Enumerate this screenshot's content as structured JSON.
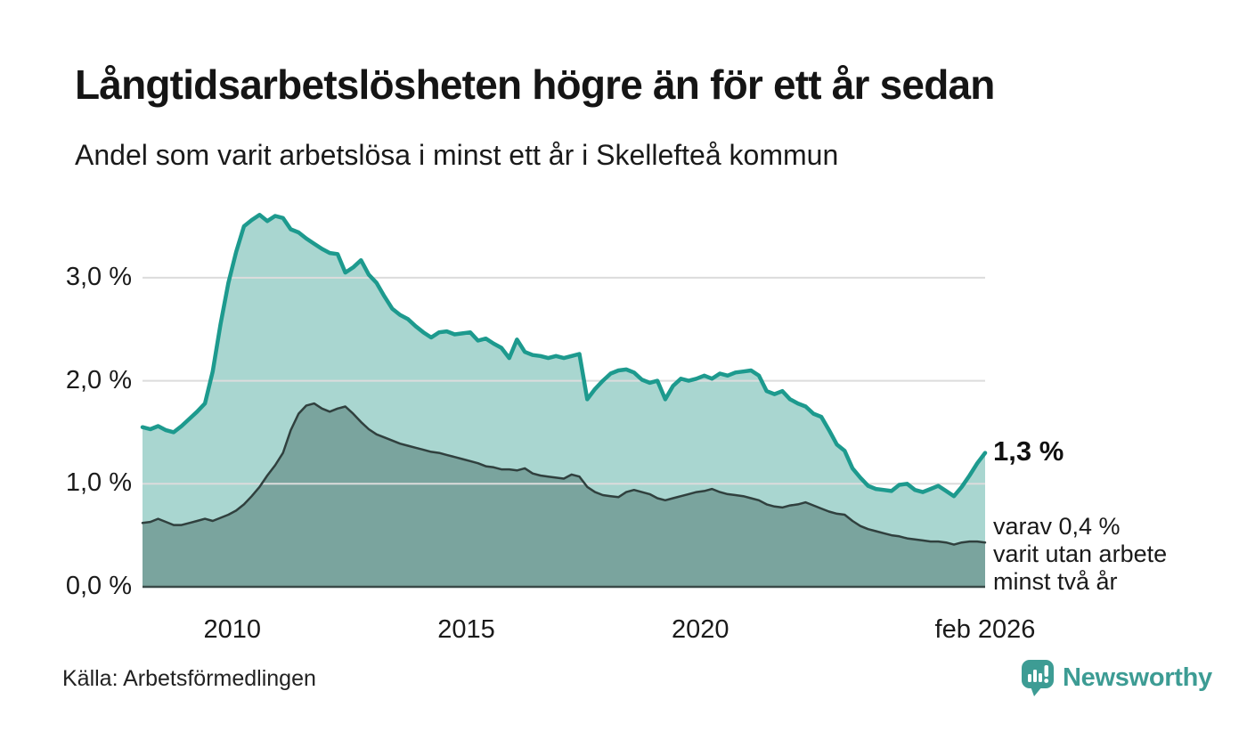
{
  "title": "Långtidsarbetslösheten högre än för ett år sedan",
  "subtitle": "Andel som varit arbetslösa i minst ett år i Skellefteå kommun",
  "annotation": {
    "end_value_label": "1,3 %",
    "secondary_lines": [
      "varav 0,4 %",
      "varit utan arbete",
      "minst två år"
    ]
  },
  "footer": {
    "source": "Källa: Arbetsförmedlingen",
    "brand": "Newsworthy"
  },
  "colors": {
    "teal_line": "#1d9a8e",
    "light_fill": "#a9d6d0",
    "dark_fill": "#7aa49e",
    "dark_line": "#30403e",
    "gridline": "#dcdcdc",
    "axis": "#3a4a48",
    "brand_teal": "#3d9c94",
    "text": "#1a1a1a"
  },
  "chart_data": {
    "type": "area",
    "title": "Långtidsarbetslösheten högre än för ett år sedan",
    "subtitle": "Andel som varit arbetslösa i minst ett år i Skellefteå kommun",
    "unit": "%",
    "x_start_year": 2008.083,
    "x_end_year": 2026.083,
    "x_step_months": 2,
    "ylim": [
      0,
      3.85
    ],
    "grid": true,
    "legend_position": "none",
    "yticks": [
      {
        "label": "0,0 %",
        "value": 0
      },
      {
        "label": "1,0 %",
        "value": 1
      },
      {
        "label": "2,0 %",
        "value": 2
      },
      {
        "label": "3,0 %",
        "value": 3
      }
    ],
    "xticks": [
      {
        "label": "2010",
        "year": 2010
      },
      {
        "label": "2015",
        "year": 2015
      },
      {
        "label": "2020",
        "year": 2020
      },
      {
        "label": "feb 2026",
        "year": 2026.083
      }
    ],
    "series": [
      {
        "name": "Arbetslösa minst ett år",
        "last_value": 1.3,
        "values": [
          1.55,
          1.53,
          1.56,
          1.52,
          1.5,
          1.56,
          1.63,
          1.7,
          1.78,
          2.09,
          2.55,
          2.95,
          3.25,
          3.5,
          3.56,
          3.61,
          3.55,
          3.6,
          3.58,
          3.47,
          3.44,
          3.38,
          3.33,
          3.28,
          3.24,
          3.23,
          3.05,
          3.1,
          3.17,
          3.03,
          2.95,
          2.82,
          2.7,
          2.64,
          2.6,
          2.53,
          2.47,
          2.42,
          2.47,
          2.48,
          2.45,
          2.46,
          2.47,
          2.39,
          2.41,
          2.36,
          2.32,
          2.22,
          2.4,
          2.28,
          2.25,
          2.24,
          2.22,
          2.24,
          2.22,
          2.24,
          2.26,
          1.82,
          1.92,
          2.0,
          2.07,
          2.1,
          2.11,
          2.08,
          2.01,
          1.98,
          2.0,
          1.82,
          1.95,
          2.02,
          2.0,
          2.02,
          2.05,
          2.02,
          2.07,
          2.05,
          2.08,
          2.09,
          2.1,
          2.05,
          1.9,
          1.87,
          1.9,
          1.82,
          1.78,
          1.75,
          1.68,
          1.65,
          1.52,
          1.38,
          1.32,
          1.15,
          1.06,
          0.98,
          0.95,
          0.94,
          0.93,
          0.99,
          1.0,
          0.94,
          0.92,
          0.95,
          0.98,
          0.93,
          0.88,
          0.97,
          1.08,
          1.2,
          1.3
        ]
      },
      {
        "name": "Varav utan arbete minst två år",
        "last_value": 0.4,
        "values": [
          0.62,
          0.63,
          0.66,
          0.63,
          0.6,
          0.6,
          0.62,
          0.64,
          0.66,
          0.64,
          0.67,
          0.7,
          0.74,
          0.8,
          0.88,
          0.97,
          1.08,
          1.18,
          1.3,
          1.52,
          1.68,
          1.76,
          1.78,
          1.73,
          1.7,
          1.73,
          1.75,
          1.68,
          1.6,
          1.53,
          1.48,
          1.45,
          1.42,
          1.39,
          1.37,
          1.35,
          1.33,
          1.31,
          1.3,
          1.28,
          1.26,
          1.24,
          1.22,
          1.2,
          1.17,
          1.16,
          1.14,
          1.14,
          1.13,
          1.15,
          1.1,
          1.08,
          1.07,
          1.06,
          1.05,
          1.09,
          1.07,
          0.97,
          0.92,
          0.89,
          0.88,
          0.87,
          0.92,
          0.94,
          0.92,
          0.9,
          0.86,
          0.84,
          0.86,
          0.88,
          0.9,
          0.92,
          0.93,
          0.95,
          0.92,
          0.9,
          0.89,
          0.88,
          0.86,
          0.84,
          0.8,
          0.78,
          0.77,
          0.79,
          0.8,
          0.82,
          0.79,
          0.76,
          0.73,
          0.71,
          0.7,
          0.64,
          0.59,
          0.56,
          0.54,
          0.52,
          0.5,
          0.49,
          0.47,
          0.46,
          0.45,
          0.44,
          0.44,
          0.43,
          0.41,
          0.43,
          0.44,
          0.44,
          0.43
        ]
      }
    ]
  }
}
